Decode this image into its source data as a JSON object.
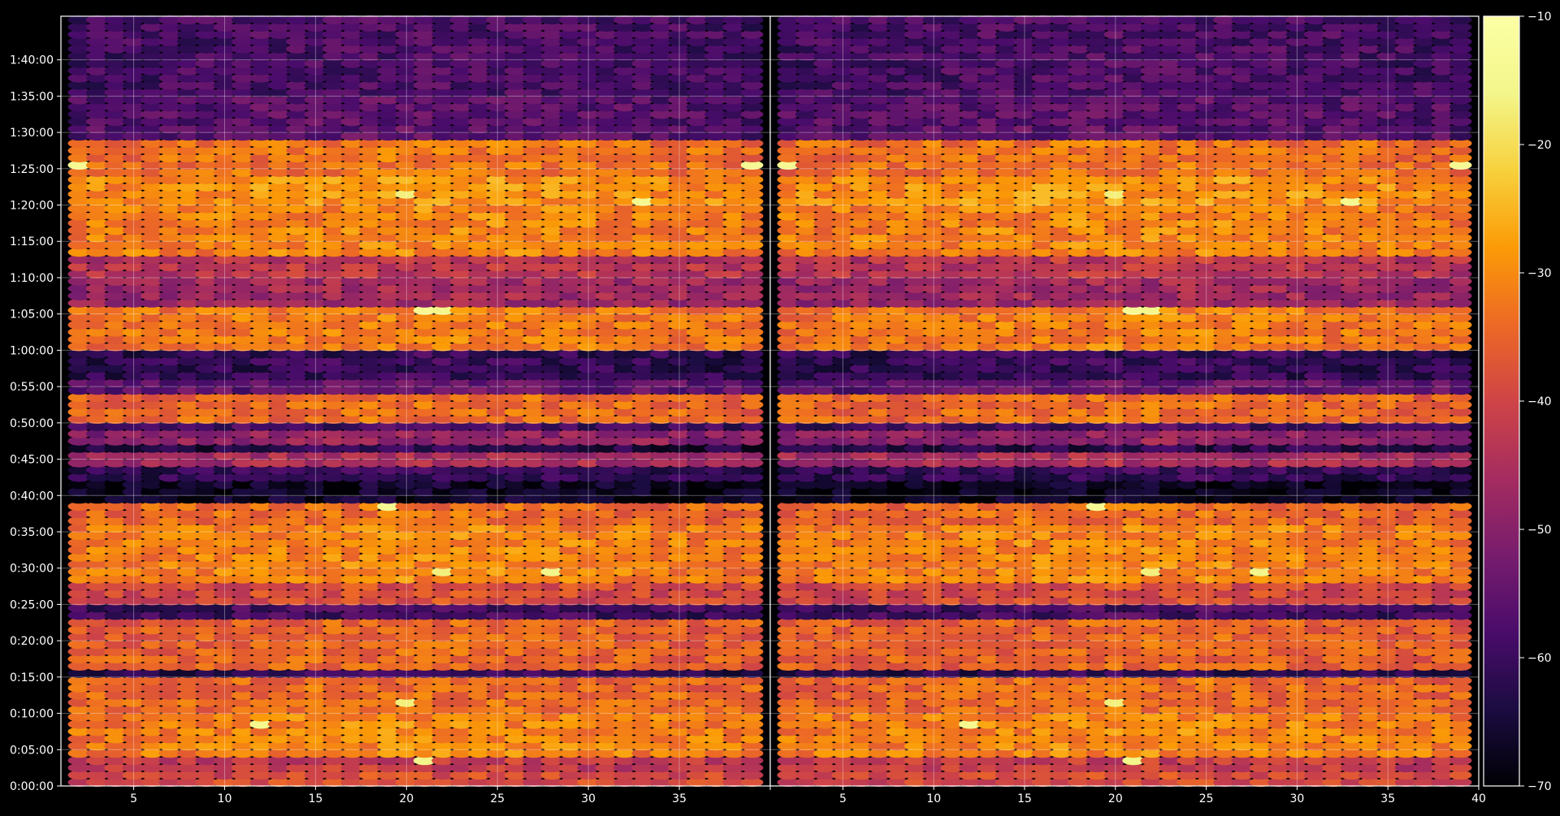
{
  "chart_data": {
    "type": "heatmap",
    "panels": 2,
    "title": "",
    "xlabel": "",
    "ylabel": "",
    "x_range": [
      1,
      40
    ],
    "x_ticks": [
      5,
      10,
      15,
      20,
      25,
      30,
      35,
      40
    ],
    "x_tick_labels": [
      "5",
      "10",
      "15",
      "20",
      "25",
      "30",
      "35",
      "40"
    ],
    "x_columns": [
      2,
      3,
      4,
      5,
      6,
      7,
      8,
      9,
      10,
      11,
      12,
      13,
      14,
      15,
      16,
      17,
      18,
      19,
      20,
      21,
      22,
      23,
      24,
      25,
      26,
      27,
      28,
      29,
      30,
      31,
      32,
      33,
      34,
      35,
      36,
      37,
      38,
      39
    ],
    "y_range_seconds": [
      0,
      6360
    ],
    "y_ticks_seconds": [
      0,
      300,
      600,
      900,
      1200,
      1500,
      1800,
      2100,
      2400,
      2700,
      3000,
      3300,
      3600,
      3900,
      4200,
      4500,
      4800,
      5100,
      5400,
      5700,
      6000
    ],
    "y_tick_labels": [
      "0:00:00",
      "0:05:00",
      "0:10:00",
      "0:15:00",
      "0:20:00",
      "0:25:00",
      "0:30:00",
      "0:35:00",
      "0:40:00",
      "0:45:00",
      "0:50:00",
      "0:55:00",
      "1:00:00",
      "1:05:00",
      "1:10:00",
      "1:15:00",
      "1:20:00",
      "1:25:00",
      "1:30:00",
      "1:35:00",
      "1:40:00"
    ],
    "row_step_seconds": 60,
    "colormap": "inferno",
    "colorbar": {
      "range": [
        -70,
        -10
      ],
      "ticks": [
        -70,
        -60,
        -50,
        -40,
        -30,
        -20,
        -10
      ],
      "tick_labels": [
        "−70",
        "−60",
        "−50",
        "−40",
        "−30",
        "−20",
        "−10"
      ]
    },
    "grid": true,
    "row_levels": [
      {
        "from": 0,
        "to": 120,
        "level": -38
      },
      {
        "from": 120,
        "to": 240,
        "level": -41
      },
      {
        "from": 240,
        "to": 600,
        "level": -30
      },
      {
        "from": 600,
        "to": 900,
        "level": -33
      },
      {
        "from": 900,
        "to": 960,
        "level": -60
      },
      {
        "from": 960,
        "to": 1380,
        "level": -34
      },
      {
        "from": 1380,
        "to": 1500,
        "level": -58
      },
      {
        "from": 1500,
        "to": 1680,
        "level": -38
      },
      {
        "from": 1680,
        "to": 2160,
        "level": -30
      },
      {
        "from": 2160,
        "to": 2340,
        "level": -33
      },
      {
        "from": 2340,
        "to": 2520,
        "level": -66
      },
      {
        "from": 2520,
        "to": 2640,
        "level": -60
      },
      {
        "from": 2640,
        "to": 2760,
        "level": -45
      },
      {
        "from": 2760,
        "to": 2820,
        "level": -62
      },
      {
        "from": 2820,
        "to": 2940,
        "level": -48
      },
      {
        "from": 2940,
        "to": 3000,
        "level": -58
      },
      {
        "from": 3000,
        "to": 3240,
        "level": -33
      },
      {
        "from": 3240,
        "to": 3360,
        "level": -54
      },
      {
        "from": 3360,
        "to": 3600,
        "level": -60
      },
      {
        "from": 3600,
        "to": 3960,
        "level": -31
      },
      {
        "from": 3960,
        "to": 4200,
        "level": -46
      },
      {
        "from": 4200,
        "to": 4380,
        "level": -42
      },
      {
        "from": 4380,
        "to": 4800,
        "level": -30
      },
      {
        "from": 4800,
        "to": 5040,
        "level": -28
      },
      {
        "from": 5040,
        "to": 5340,
        "level": -32
      },
      {
        "from": 5340,
        "to": 5460,
        "level": -55
      },
      {
        "from": 5460,
        "to": 5700,
        "level": -55
      },
      {
        "from": 5700,
        "to": 6360,
        "level": -57
      }
    ],
    "hotspots": [
      {
        "x": 19,
        "t": 2280,
        "level": -14
      },
      {
        "x": 21,
        "t": 3900,
        "level": -14
      },
      {
        "x": 33,
        "t": 4800,
        "level": -15
      },
      {
        "x": 2,
        "t": 5100,
        "level": -14
      },
      {
        "x": 39,
        "t": 5100,
        "level": -14
      },
      {
        "x": 12,
        "t": 480,
        "level": -15
      },
      {
        "x": 28,
        "t": 1740,
        "level": -16
      },
      {
        "x": 22,
        "t": 1740,
        "level": -17
      },
      {
        "x": 21,
        "t": 180,
        "level": -16
      },
      {
        "x": 20,
        "t": 660,
        "level": -17
      },
      {
        "x": 22,
        "t": 3900,
        "level": -16
      },
      {
        "x": 20,
        "t": 4860,
        "level": -17
      }
    ]
  }
}
